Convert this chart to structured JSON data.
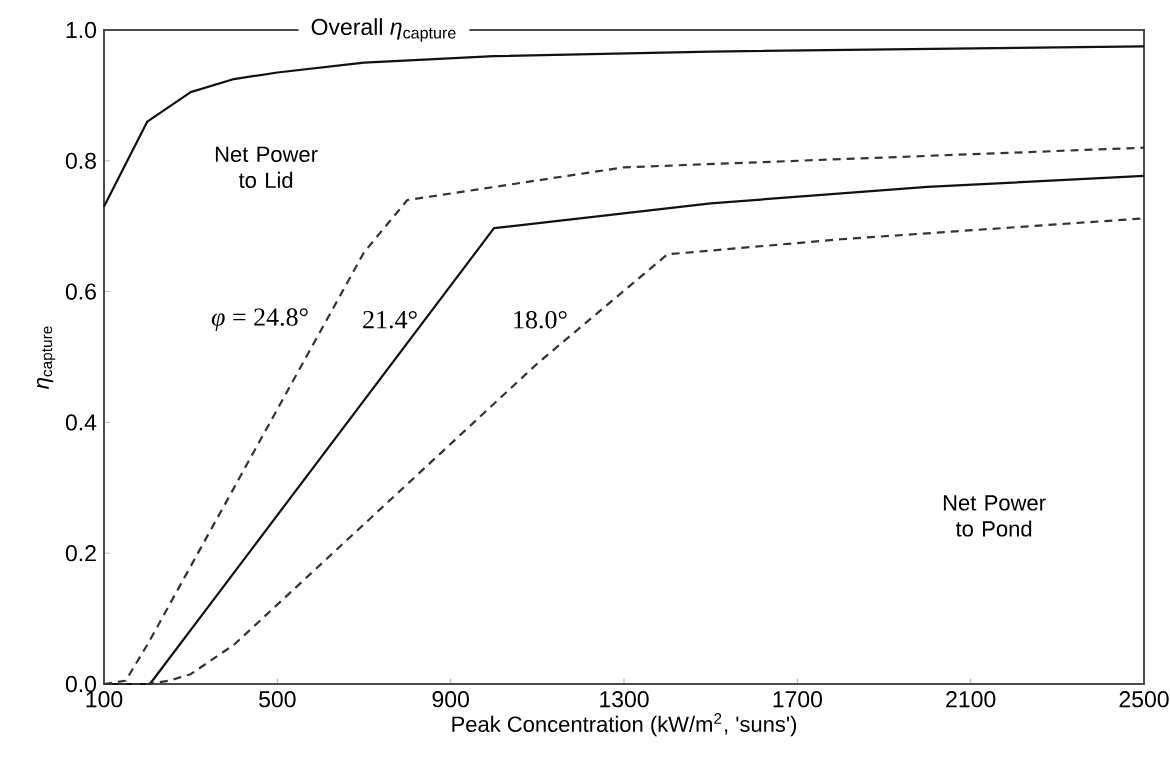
{
  "chart_data": {
    "type": "line",
    "xlabel": "Peak Concentration (kW/m$^{2}$, 'suns')",
    "ylabel": "*η*$_{capture}$",
    "xlim": [
      100,
      2500
    ],
    "xticks": [
      100,
      500,
      900,
      1300,
      1700,
      2100,
      2500
    ],
    "ylim": [
      0,
      1
    ],
    "yticks": [
      {
        "value": 0,
        "label": "0.0"
      },
      {
        "value": 0.2,
        "label": "0.2"
      },
      {
        "value": 0.4,
        "label": "0.4"
      },
      {
        "value": 0.6,
        "label": "0.6"
      },
      {
        "value": 0.8,
        "label": "0.8"
      },
      {
        "value": 1,
        "label": "1.0"
      }
    ],
    "grid": false,
    "marker": "none",
    "series": [
      {
        "color": "#111111",
        "line_style": "solid",
        "x": [
          100,
          200,
          300,
          400,
          500,
          700,
          1000,
          1500,
          2500
        ],
        "values": [
          0.73,
          0.86,
          0.905,
          0.925,
          0.935,
          0.95,
          0.96,
          0.967,
          0.975
        ]
      },
      {
        "color": "#333333",
        "line_style": "dashed",
        "x": [
          100,
          150,
          200,
          700,
          800,
          1300,
          2500
        ],
        "values": [
          0,
          0.005,
          0.06,
          0.66,
          0.74,
          0.79,
          0.82
        ]
      },
      {
        "color": "#111111",
        "line_style": "solid",
        "x": [
          100,
          206,
          1000,
          1500,
          2000,
          2500
        ],
        "values": [
          0,
          0,
          0.697,
          0.735,
          0.76,
          0.777
        ]
      },
      {
        "color": "#333333",
        "line_style": "dashed",
        "x": [
          100,
          200,
          250,
          300,
          400,
          1100,
          1400,
          1800,
          2500
        ],
        "values": [
          0,
          0,
          0.005,
          0.015,
          0.06,
          0.49,
          0.657,
          0.68,
          0.712
        ]
      }
    ],
    "annotations": [
      "Overall *η*$_{capture}$",
      "Net Power to Lid",
      "*φ* = 24.8°",
      "21.4°",
      "18.0°",
      "Net Power to Pond"
    ]
  }
}
